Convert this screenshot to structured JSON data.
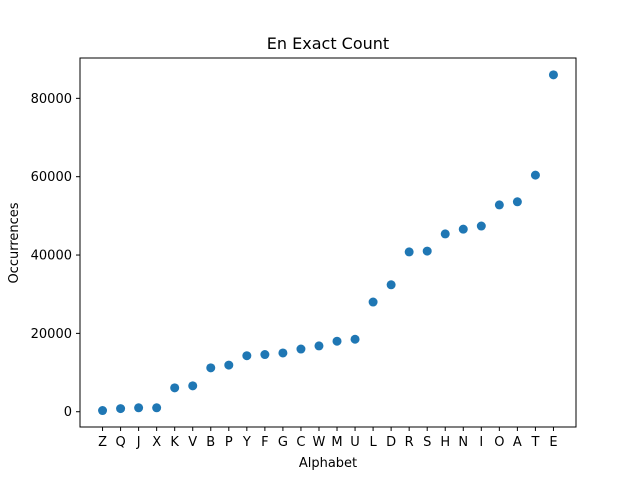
{
  "chart_data": {
    "type": "scatter",
    "title": "En Exact Count",
    "xlabel": "Alphabet",
    "ylabel": "Occurrences",
    "categories": [
      "Z",
      "Q",
      "J",
      "X",
      "K",
      "V",
      "B",
      "P",
      "Y",
      "F",
      "G",
      "C",
      "W",
      "M",
      "U",
      "L",
      "D",
      "R",
      "S",
      "H",
      "N",
      "I",
      "O",
      "A",
      "T",
      "E"
    ],
    "series": [
      {
        "values": [
          300,
          800,
          1000,
          1000,
          6100,
          6600,
          11200,
          11900,
          14300,
          14600,
          15000,
          16000,
          16800,
          18000,
          18500,
          28000,
          32400,
          40800,
          41000,
          45400,
          46600,
          47400,
          52800,
          53600,
          60400,
          86000
        ],
        "color": "#1f77b4"
      }
    ],
    "ylim": [
      -3900,
      90300
    ],
    "yticks": [
      0,
      20000,
      40000,
      60000,
      80000
    ],
    "ytick_labels": [
      "0",
      "20000",
      "40000",
      "60000",
      "80000"
    ],
    "grid": false,
    "legend": "none"
  }
}
